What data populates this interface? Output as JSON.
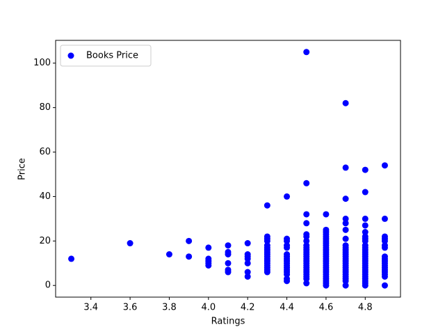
{
  "chart_data": {
    "type": "scatter",
    "xlabel": "Ratings",
    "ylabel": "Price",
    "xlim": [
      3.22,
      4.98
    ],
    "ylim": [
      -5.25,
      110.25
    ],
    "xticks": [
      3.4,
      3.6,
      3.8,
      {
        "value": 4,
        "label": "4.0"
      },
      4.2,
      4.4,
      4.6,
      4.8
    ],
    "yticks": [
      0,
      20,
      40,
      60,
      80,
      100
    ],
    "legend": "upper left",
    "series": [
      {
        "name": "Books Price",
        "color": "blue",
        "x": [
          3.3,
          3.6,
          3.8,
          3.9,
          3.9,
          4.0,
          4.0,
          4.0,
          4.0,
          4.0,
          4.1,
          4.1,
          4.1,
          4.1,
          4.1,
          4.1,
          4.2,
          4.2,
          4.2,
          4.2,
          4.2,
          4.2,
          4.2,
          4.3,
          4.3,
          4.3,
          4.3,
          4.3,
          4.3,
          4.3,
          4.3,
          4.3,
          4.3,
          4.3,
          4.3,
          4.3,
          4.3,
          4.3,
          4.3,
          4.3,
          4.4,
          4.4,
          4.4,
          4.4,
          4.4,
          4.4,
          4.4,
          4.4,
          4.4,
          4.4,
          4.4,
          4.4,
          4.4,
          4.4,
          4.4,
          4.4,
          4.4,
          4.5,
          4.5,
          4.5,
          4.5,
          4.5,
          4.5,
          4.5,
          4.5,
          4.5,
          4.5,
          4.5,
          4.5,
          4.5,
          4.5,
          4.5,
          4.5,
          4.5,
          4.5,
          4.5,
          4.5,
          4.5,
          4.5,
          4.5,
          4.5,
          4.6,
          4.6,
          4.6,
          4.6,
          4.6,
          4.6,
          4.6,
          4.6,
          4.6,
          4.6,
          4.6,
          4.6,
          4.6,
          4.6,
          4.6,
          4.6,
          4.6,
          4.6,
          4.6,
          4.6,
          4.6,
          4.6,
          4.6,
          4.6,
          4.6,
          4.6,
          4.6,
          4.7,
          4.7,
          4.7,
          4.7,
          4.7,
          4.7,
          4.7,
          4.7,
          4.7,
          4.7,
          4.7,
          4.7,
          4.7,
          4.7,
          4.7,
          4.7,
          4.7,
          4.7,
          4.7,
          4.7,
          4.7,
          4.7,
          4.7,
          4.7,
          4.7,
          4.8,
          4.8,
          4.8,
          4.8,
          4.8,
          4.8,
          4.8,
          4.8,
          4.8,
          4.8,
          4.8,
          4.8,
          4.8,
          4.8,
          4.8,
          4.8,
          4.8,
          4.8,
          4.8,
          4.8,
          4.8,
          4.8,
          4.8,
          4.8,
          4.8,
          4.8,
          4.8,
          4.9,
          4.9,
          4.9,
          4.9,
          4.9,
          4.9,
          4.9,
          4.9,
          4.9,
          4.9,
          4.9,
          4.9,
          4.9,
          4.9,
          4.9,
          4.9,
          4.9,
          4.9
        ],
        "values": [
          12,
          19,
          14,
          20,
          13,
          17,
          12,
          11,
          10,
          9,
          18,
          15,
          14,
          10,
          7,
          6,
          19,
          14,
          13,
          12,
          10,
          6,
          4,
          36,
          22,
          21,
          20,
          18,
          17,
          16,
          15,
          14,
          13,
          12,
          11,
          10,
          9,
          8,
          7,
          6,
          40,
          21,
          20,
          18,
          17,
          14,
          13,
          12,
          11,
          10,
          9,
          8,
          7,
          6,
          5,
          3,
          2,
          105,
          46,
          32,
          28,
          23,
          22,
          20,
          18,
          17,
          16,
          15,
          14,
          13,
          12,
          11,
          10,
          9,
          8,
          7,
          6,
          5,
          4,
          3,
          1,
          32,
          25,
          24,
          23,
          22,
          21,
          20,
          19,
          18,
          17,
          16,
          15,
          14,
          13,
          12,
          11,
          10,
          9,
          8,
          7,
          6,
          5,
          4,
          3,
          2,
          1,
          0,
          82,
          53,
          39,
          30,
          28,
          25,
          21,
          18,
          17,
          16,
          15,
          14,
          13,
          12,
          11,
          10,
          9,
          8,
          7,
          6,
          5,
          4,
          3,
          2,
          0,
          52,
          42,
          30,
          27,
          24,
          22,
          21,
          20,
          18,
          17,
          16,
          15,
          14,
          13,
          12,
          11,
          10,
          9,
          8,
          7,
          6,
          5,
          4,
          3,
          2,
          1,
          0,
          54,
          30,
          22,
          21,
          20,
          18,
          17,
          13,
          12,
          11,
          10,
          9,
          8,
          7,
          6,
          5,
          4,
          0
        ]
      }
    ]
  }
}
